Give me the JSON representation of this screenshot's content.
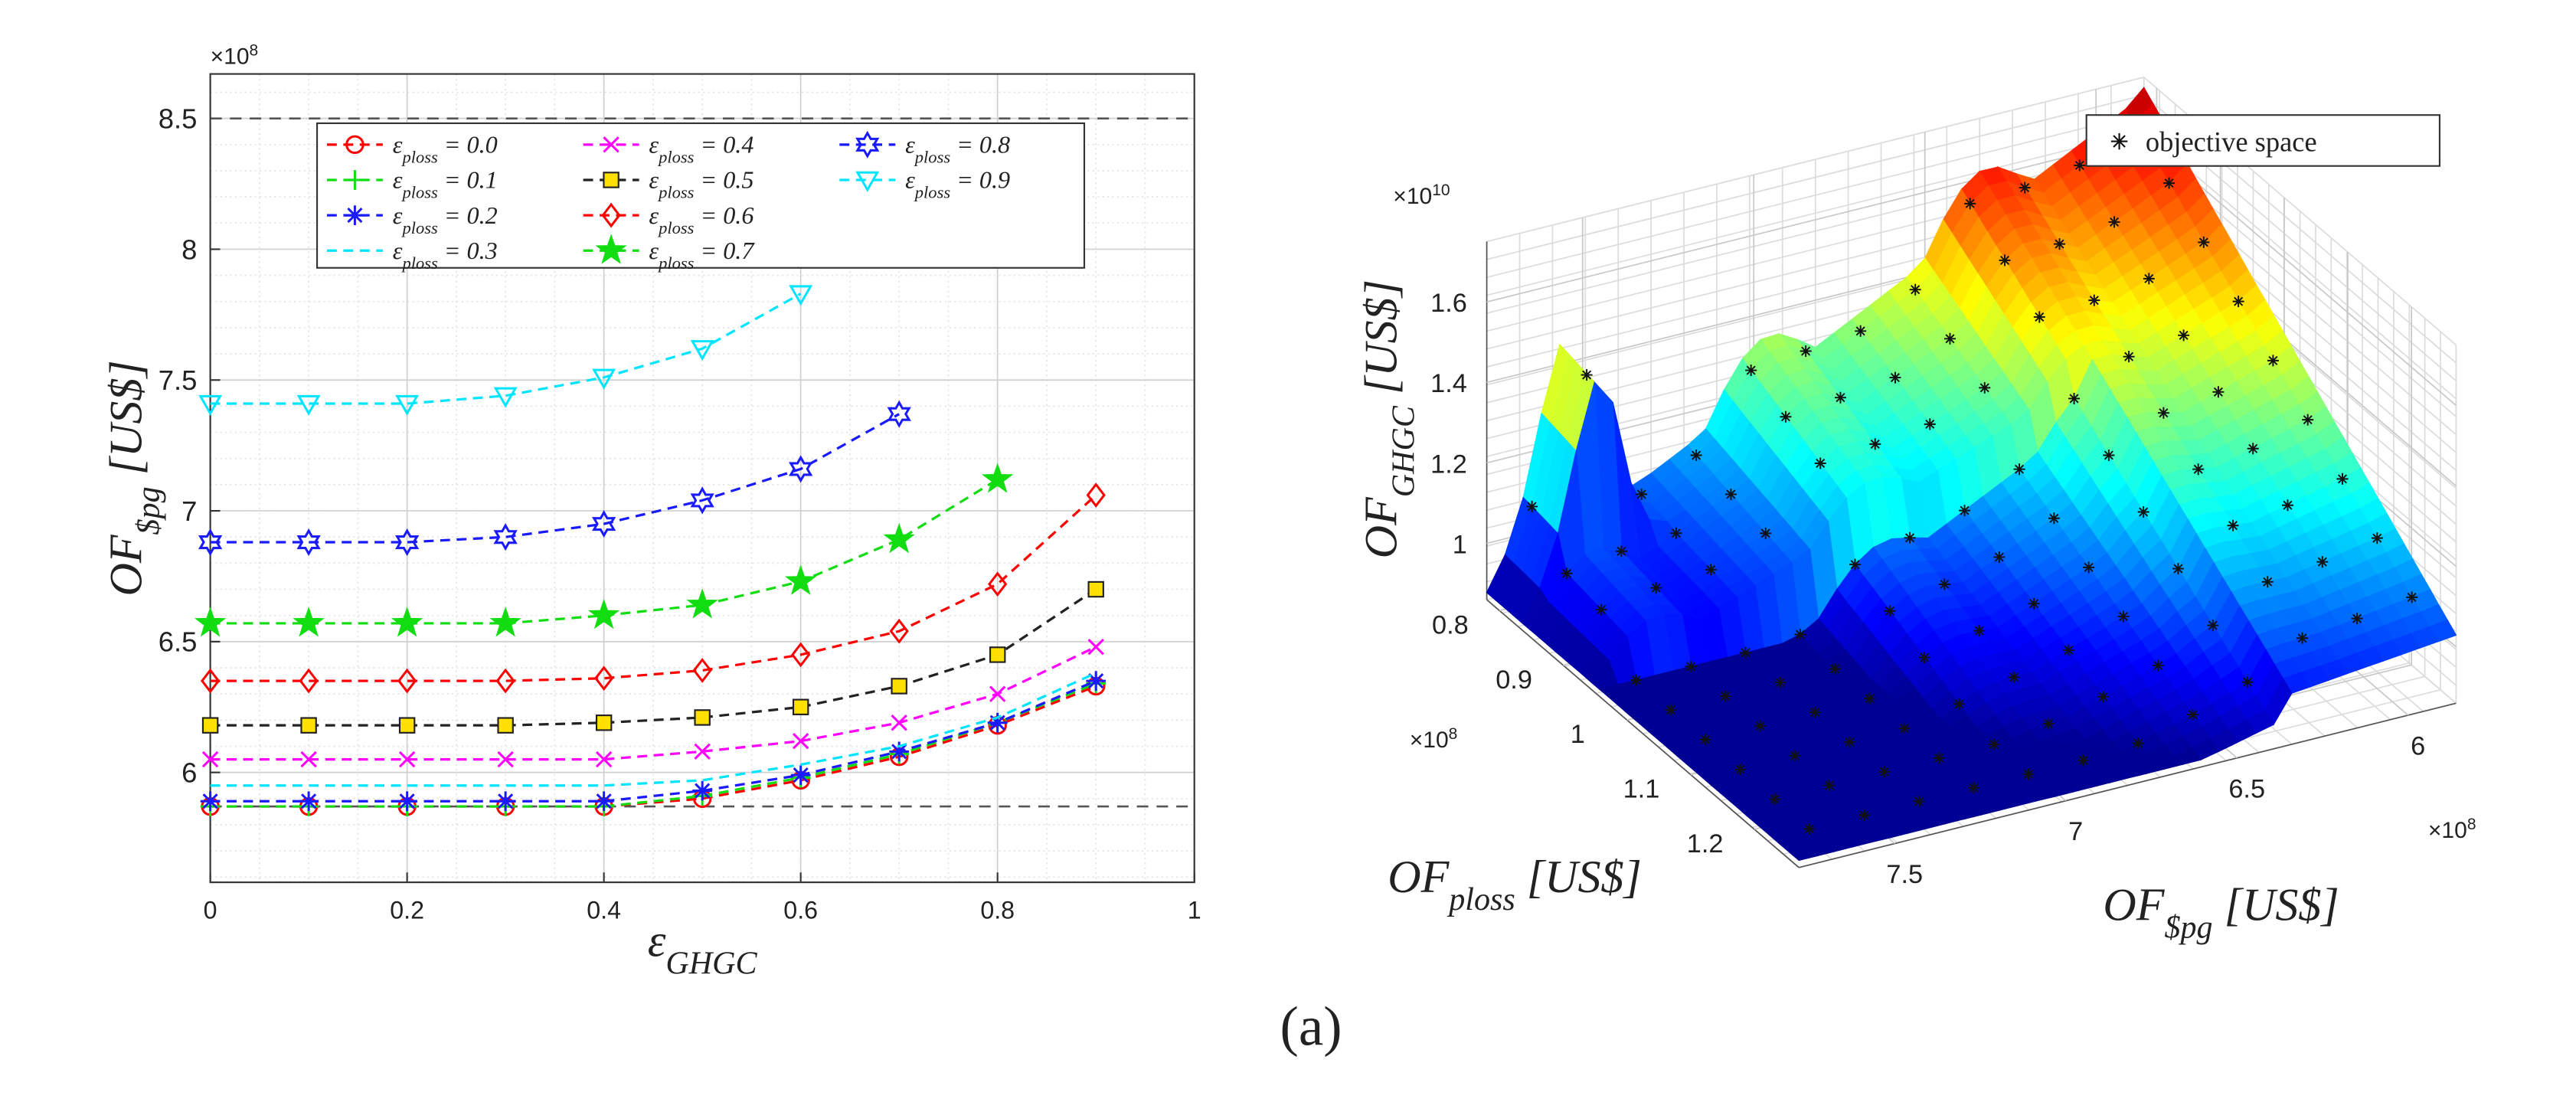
{
  "chart_data": [
    {
      "type": "line",
      "x_label": "ε_GHGC",
      "y_label": "OF_$pg [US$]",
      "y_multiplier": "×10^8",
      "x": [
        0,
        0.1,
        0.2,
        0.3,
        0.4,
        0.5,
        0.6,
        0.7,
        0.8,
        0.9
      ],
      "xlim": [
        0,
        1
      ],
      "xticks": [
        0,
        0.2,
        0.4,
        0.6,
        0.8,
        1
      ],
      "ylim": [
        5.58,
        8.67
      ],
      "yticks": [
        6,
        6.5,
        7,
        7.5,
        8,
        8.5
      ],
      "grid": true,
      "minor_grid": true,
      "reference_lines": [
        8.5,
        5.87
      ],
      "legend": "upper center",
      "series": [
        {
          "name": "ε_ploss = 0.0",
          "color": "#ff0000",
          "marker": "circle",
          "values": [
            5.87,
            5.87,
            5.87,
            5.87,
            5.87,
            5.9,
            5.97,
            6.06,
            6.18,
            6.33
          ]
        },
        {
          "name": "ε_ploss = 0.1",
          "color": "#11dd11",
          "marker": "plus",
          "values": [
            5.87,
            5.87,
            5.87,
            5.87,
            5.87,
            5.91,
            5.98,
            6.07,
            6.19,
            6.34
          ]
        },
        {
          "name": "ε_ploss = 0.2",
          "color": "#1a1aff",
          "marker": "asterisk",
          "values": [
            5.89,
            5.89,
            5.89,
            5.89,
            5.89,
            5.93,
            5.99,
            6.08,
            6.19,
            6.35
          ]
        },
        {
          "name": "ε_ploss = 0.3",
          "color": "#00e5ff",
          "marker": "none",
          "values": [
            5.95,
            5.95,
            5.95,
            5.95,
            5.95,
            5.97,
            6.03,
            6.1,
            6.21,
            6.38
          ]
        },
        {
          "name": "ε_ploss = 0.4",
          "color": "#ff00ff",
          "marker": "x",
          "values": [
            6.05,
            6.05,
            6.05,
            6.05,
            6.05,
            6.08,
            6.12,
            6.19,
            6.3,
            6.48
          ]
        },
        {
          "name": "ε_ploss = 0.5",
          "color": "#222222",
          "marker": "square",
          "marker_fill": "#ffe000",
          "values": [
            6.18,
            6.18,
            6.18,
            6.18,
            6.19,
            6.21,
            6.25,
            6.33,
            6.45,
            6.7
          ]
        },
        {
          "name": "ε_ploss = 0.6",
          "color": "#ff0000",
          "marker": "diamond",
          "values": [
            6.35,
            6.35,
            6.35,
            6.35,
            6.36,
            6.39,
            6.45,
            6.54,
            6.72,
            7.06
          ]
        },
        {
          "name": "ε_ploss = 0.7",
          "color": "#11dd11",
          "marker": "pentagram",
          "values": [
            6.57,
            6.57,
            6.57,
            6.57,
            6.6,
            6.64,
            6.73,
            6.89,
            7.12,
            null
          ]
        },
        {
          "name": "ε_ploss = 0.8",
          "color": "#1a1aff",
          "marker": "hexagram",
          "values": [
            6.88,
            6.88,
            6.88,
            6.9,
            6.95,
            7.04,
            7.16,
            7.37,
            null,
            null
          ]
        },
        {
          "name": "ε_ploss = 0.9",
          "color": "#00e5ff",
          "marker": "triangle-down",
          "values": [
            7.41,
            7.41,
            7.41,
            7.44,
            7.51,
            7.62,
            7.83,
            null,
            null,
            null
          ]
        }
      ]
    },
    {
      "type": "surface",
      "legend_label": "objective space",
      "x_label": "OF_ploss [US$]",
      "x_multiplier": "×10^8",
      "y_label": "OF_$pg [US$]",
      "y_multiplier": "×10^8",
      "z_label": "OF_GHGC [US$]",
      "z_multiplier": "×10^10",
      "xlim": [
        0.78,
        1.27
      ],
      "xticks": [
        0.8,
        0.9,
        1,
        1.1,
        1.2
      ],
      "ylim": [
        5.86,
        7.78
      ],
      "yticks": [
        6,
        6.5,
        7,
        7.5
      ],
      "zlim": [
        0.86,
        1.75
      ],
      "zticks": [
        1,
        1.2,
        1.4,
        1.6
      ],
      "colormap": "jet"
    }
  ],
  "caption": "(a)"
}
